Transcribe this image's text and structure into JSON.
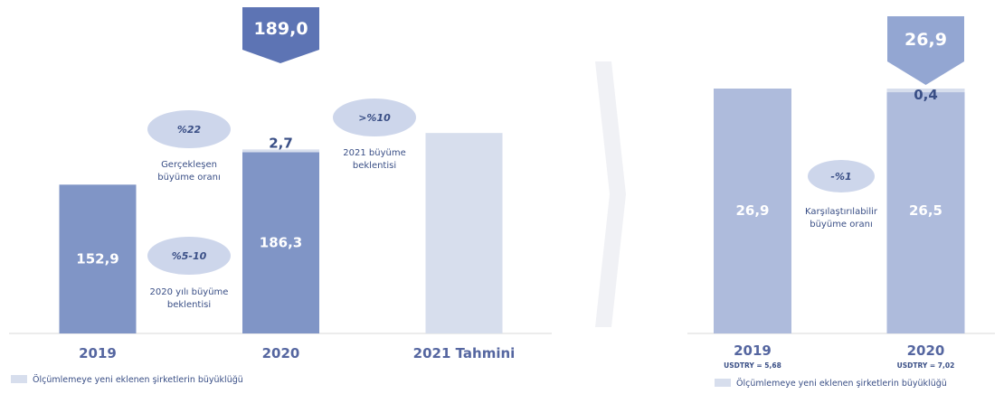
{
  "colors": {
    "bar_main": "#8095c6",
    "bar_light": "#aebbdc",
    "bar_forecast": "#d7deed",
    "increment": "#d7deed",
    "bubble": "#cdd6eb",
    "callout_left": "#5d74b4",
    "callout_right": "#93a6d2",
    "text_dark": "#3a4f86",
    "arrow": "#f0f1f5"
  },
  "left_callout": "189,0",
  "right_callout": "26,9",
  "left_bubbles": [
    {
      "value": "%22",
      "caption": [
        "Gerçekleşen",
        "büyüme oranı"
      ]
    },
    {
      "value": ">%10",
      "caption": [
        "2021 büyüme",
        "beklentisi"
      ]
    },
    {
      "value": "%5-10",
      "caption": [
        "2020 yılı büyüme",
        "beklentisi"
      ]
    }
  ],
  "right_bubble": {
    "value": "-%1",
    "caption": [
      "Karşılaştırılabilir",
      "büyüme oranı"
    ]
  },
  "legend_left": "Ölçümlemeye yeni eklenen şirketlerin büyüklüğü",
  "legend_right": "Ölçümlemeye yeni eklenen şirketlerin büyüklüğü",
  "chart_data": [
    {
      "type": "bar",
      "categories": [
        "2019",
        "2020",
        "2021 Tahmini"
      ],
      "series": [
        {
          "values": [
            152.9,
            186.3,
            null
          ],
          "labels": [
            "152,9",
            "186,3",
            ""
          ]
        },
        {
          "name": "Ölçümlemeye yeni eklenen şirketlerin büyüklüğü",
          "values": [
            0,
            2.7,
            null
          ],
          "labels": [
            "",
            "2,7",
            ""
          ]
        },
        {
          "values": [
            null,
            null,
            206
          ],
          "labels": [
            "",
            "",
            ""
          ]
        }
      ],
      "total_label": "189,0",
      "ylim": [
        0,
        260
      ]
    },
    {
      "type": "bar",
      "categories": [
        "2019",
        "2020"
      ],
      "subcategories": [
        "USDTRY = 5,68",
        "USDTRY = 7,02"
      ],
      "series": [
        {
          "values": [
            26.9,
            26.5
          ],
          "labels": [
            "26,9",
            "26,5"
          ]
        },
        {
          "name": "Ölçümlemeye yeni eklenen şirketlerin büyüklüğü",
          "values": [
            0,
            0.4
          ],
          "labels": [
            "",
            "0,4"
          ]
        }
      ],
      "total_label": "26,9",
      "ylim": [
        0,
        26.9
      ]
    }
  ]
}
